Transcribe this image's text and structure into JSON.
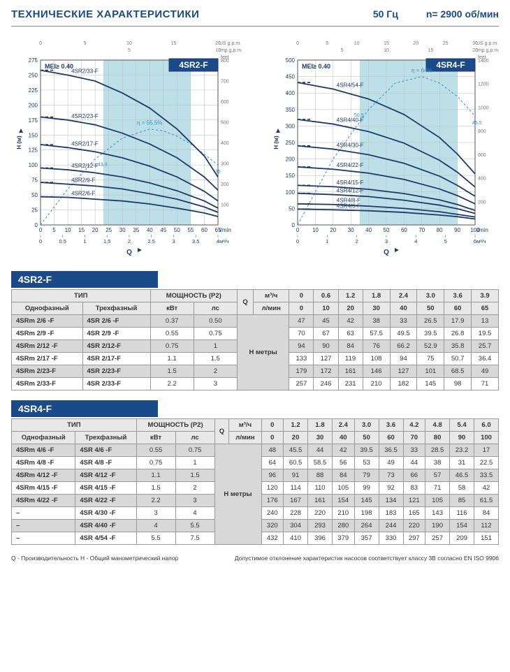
{
  "header": {
    "title": "ТЕХНИЧЕСКИЕ ХАРАКТЕРИСТИКИ",
    "freq": "50 Гц",
    "rpm": "n= 2900 об/мин"
  },
  "charts": {
    "left": {
      "badge": "4SR2-F",
      "mei": "MEI≥ 0.40",
      "eff_label": "η = 55.5%",
      "xlim": [
        0,
        65
      ],
      "ylim": [
        0,
        275
      ],
      "yticks": [
        0,
        25,
        50,
        75,
        100,
        125,
        150,
        175,
        200,
        225,
        250,
        275
      ],
      "xticks": [
        0,
        5,
        10,
        15,
        20,
        25,
        30,
        35,
        40,
        45,
        50,
        55,
        60,
        65
      ],
      "xtop_ticks": [
        0,
        5,
        10,
        15,
        20
      ],
      "xtop_label": "US g.p.m.",
      "xtop2_ticks": [
        5,
        10
      ],
      "xtop2_label": "Imp.g.p.m.",
      "xbot_ticks": [
        0,
        0.5,
        1,
        1.5,
        2,
        2.5,
        3,
        3.5,
        4
      ],
      "xbot_label": "м³/ч",
      "xunits": "l/min",
      "ylabel_left": "H   (м)",
      "yright_ticks": [
        100,
        200,
        300,
        400,
        500,
        600,
        700,
        800
      ],
      "yright_label": "feet",
      "xlabel": "Q",
      "shade_x": [
        23,
        55
      ],
      "curves": [
        {
          "label": "4SR2/33-F",
          "pts": [
            [
              0,
              258
            ],
            [
              10,
              250
            ],
            [
              20,
              240
            ],
            [
              30,
              220
            ],
            [
              40,
              195
            ],
            [
              50,
              160
            ],
            [
              60,
              115
            ],
            [
              65,
              80
            ]
          ]
        },
        {
          "label": "4SR2/23-F",
          "pts": [
            [
              0,
              180
            ],
            [
              10,
              175
            ],
            [
              20,
              167
            ],
            [
              30,
              153
            ],
            [
              40,
              135
            ],
            [
              50,
              112
            ],
            [
              60,
              80
            ],
            [
              65,
              58
            ]
          ]
        },
        {
          "label": "4SR2/17-F",
          "pts": [
            [
              0,
              134
            ],
            [
              10,
              129
            ],
            [
              20,
              122
            ],
            [
              30,
              112
            ],
            [
              40,
              98
            ],
            [
              50,
              80
            ],
            [
              60,
              56
            ],
            [
              65,
              40
            ]
          ]
        },
        {
          "label": "4SR2/12-F",
          "pts": [
            [
              0,
              95
            ],
            [
              10,
              92
            ],
            [
              20,
              87
            ],
            [
              30,
              80
            ],
            [
              40,
              70
            ],
            [
              50,
              57
            ],
            [
              60,
              40
            ],
            [
              65,
              28
            ]
          ]
        },
        {
          "label": "4SR2/9-F",
          "pts": [
            [
              0,
              71
            ],
            [
              10,
              68
            ],
            [
              20,
              65
            ],
            [
              30,
              60
            ],
            [
              40,
              52
            ],
            [
              50,
              43
            ],
            [
              60,
              30
            ],
            [
              65,
              21
            ]
          ]
        },
        {
          "label": "4SR2/6-F",
          "pts": [
            [
              0,
              47
            ],
            [
              10,
              46
            ],
            [
              20,
              43
            ],
            [
              30,
              40
            ],
            [
              40,
              35
            ],
            [
              50,
              28
            ],
            [
              60,
              20
            ],
            [
              65,
              14
            ]
          ]
        }
      ],
      "eff_curve": [
        [
          0,
          0
        ],
        [
          10,
          60
        ],
        [
          20,
          110
        ],
        [
          30,
          145
        ],
        [
          40,
          160
        ],
        [
          45,
          157
        ],
        [
          50,
          148
        ],
        [
          55,
          135
        ],
        [
          60,
          118
        ],
        [
          65,
          100
        ]
      ],
      "eff_end_labels": {
        "start": "43.4",
        "end": "35"
      },
      "colors": {
        "line": "#1b3a6a",
        "bg": "#ffffff",
        "grid": "#bbb",
        "shade": "#bde0e8",
        "badge_bg": "#1b4a8a",
        "eff": "#2d93c9"
      }
    },
    "right": {
      "badge": "4SR4-F",
      "mei": "MEI≥ 0.40",
      "eff_label": "η = 64%",
      "xlim": [
        0,
        100
      ],
      "ylim": [
        0,
        500
      ],
      "yticks": [
        0,
        50,
        100,
        150,
        200,
        250,
        300,
        350,
        400,
        450,
        500
      ],
      "xticks": [
        0,
        10,
        20,
        30,
        40,
        50,
        60,
        70,
        80,
        90,
        100
      ],
      "xtop_ticks": [
        0,
        5,
        10,
        15,
        20,
        25,
        30
      ],
      "xtop_label": "US g.p.m.",
      "xtop2_ticks": [
        5,
        10,
        15,
        20
      ],
      "xtop2_label": "Imp.g.p.m.",
      "xbot_ticks": [
        0,
        1,
        2,
        3,
        4,
        5,
        6
      ],
      "xbot_label": "м³/ч",
      "xunits": "l/min",
      "ylabel_left": "H   (м)",
      "yright_ticks": [
        200,
        400,
        600,
        800,
        1000,
        1200,
        1400
      ],
      "yright_label": "feet",
      "xlabel": "Q",
      "shade_x": [
        35,
        90
      ],
      "curves": [
        {
          "label": "4SR4/54-F",
          "pts": [
            [
              0,
              432
            ],
            [
              20,
              412
            ],
            [
              40,
              382
            ],
            [
              60,
              335
            ],
            [
              80,
              265
            ],
            [
              90,
              215
            ],
            [
              100,
              155
            ]
          ]
        },
        {
          "label": "4SR4/40-F",
          "pts": [
            [
              0,
              320
            ],
            [
              20,
              306
            ],
            [
              40,
              283
            ],
            [
              60,
              248
            ],
            [
              80,
              196
            ],
            [
              90,
              160
            ],
            [
              100,
              115
            ]
          ]
        },
        {
          "label": "4SR4/30-F",
          "pts": [
            [
              0,
              240
            ],
            [
              20,
              230
            ],
            [
              40,
              213
            ],
            [
              60,
              187
            ],
            [
              80,
              148
            ],
            [
              90,
              120
            ],
            [
              100,
              87
            ]
          ]
        },
        {
          "label": "4SR4/22-F",
          "pts": [
            [
              0,
              176
            ],
            [
              20,
              169
            ],
            [
              40,
              157
            ],
            [
              60,
              138
            ],
            [
              80,
              109
            ],
            [
              90,
              89
            ],
            [
              100,
              64
            ]
          ]
        },
        {
          "label": "4SR4/15-F",
          "pts": [
            [
              0,
              120
            ],
            [
              20,
              116
            ],
            [
              40,
              108
            ],
            [
              60,
              95
            ],
            [
              80,
              76
            ],
            [
              90,
              62
            ],
            [
              100,
              44
            ]
          ]
        },
        {
          "label": "4SR4/12-F",
          "pts": [
            [
              0,
              96
            ],
            [
              20,
              92
            ],
            [
              40,
              86
            ],
            [
              60,
              75
            ],
            [
              80,
              60
            ],
            [
              90,
              49
            ],
            [
              100,
              35
            ]
          ]
        },
        {
          "label": "4SR4/8-F",
          "pts": [
            [
              0,
              64
            ],
            [
              20,
              62
            ],
            [
              40,
              57
            ],
            [
              60,
              50
            ],
            [
              80,
              40
            ],
            [
              90,
              32
            ],
            [
              100,
              24
            ]
          ]
        },
        {
          "label": "4SR4/6-F",
          "pts": [
            [
              0,
              48
            ],
            [
              20,
              46
            ],
            [
              40,
              43
            ],
            [
              60,
              38
            ],
            [
              80,
              30
            ],
            [
              90,
              25
            ],
            [
              100,
              18
            ]
          ]
        }
      ],
      "eff_curve": [
        [
          0,
          0
        ],
        [
          20,
          200
        ],
        [
          40,
          350
        ],
        [
          55,
          430
        ],
        [
          70,
          450
        ],
        [
          80,
          430
        ],
        [
          90,
          390
        ],
        [
          100,
          330
        ]
      ],
      "eff_end_labels": {
        "start": "50.5",
        "end": "45.5"
      },
      "colors": {
        "line": "#1b3a6a",
        "bg": "#ffffff",
        "grid": "#bbb",
        "shade": "#bde0e8",
        "badge_bg": "#1b4a8a",
        "eff": "#2d93c9"
      }
    }
  },
  "tables": {
    "t1": {
      "title": "4SR2-F",
      "headers": {
        "type": "ТИП",
        "single": "Однофазный",
        "three": "Трехфазный",
        "power": "МОЩНОСТЬ (P2)",
        "kw": "кВт",
        "hp": "лс",
        "q": "Q",
        "m3h": "м³/ч",
        "lmin": "л/мин",
        "hunit": "H  метры"
      },
      "m3h_row": [
        "0",
        "0.6",
        "1.2",
        "1.8",
        "2.4",
        "3.0",
        "3.6",
        "3.9"
      ],
      "lmin_row": [
        "0",
        "10",
        "20",
        "30",
        "40",
        "50",
        "60",
        "65"
      ],
      "rows": [
        {
          "s": "4SRm 2/6  -F",
          "t": "4SR 2/6  -F",
          "kw": "0.37",
          "hp": "0.50",
          "v": [
            "47",
            "45",
            "42",
            "38",
            "33",
            "26.5",
            "17.9",
            "13"
          ]
        },
        {
          "s": "4SRm 2/9  -F",
          "t": "4SR 2/9  -F",
          "kw": "0.55",
          "hp": "0.75",
          "v": [
            "70",
            "67",
            "63",
            "57.5",
            "49.5",
            "39.5",
            "26.8",
            "19.5"
          ]
        },
        {
          "s": "4SRm 2/12 -F",
          "t": "4SR 2/12-F",
          "kw": "0.75",
          "hp": "1",
          "v": [
            "94",
            "90",
            "84",
            "76",
            "66.2",
            "52.9",
            "35.8",
            "25.7"
          ]
        },
        {
          "s": "4SRm 2/17 -F",
          "t": "4SR 2/17-F",
          "kw": "1.1",
          "hp": "1.5",
          "v": [
            "133",
            "127",
            "119",
            "108",
            "94",
            "75",
            "50.7",
            "36.4"
          ]
        },
        {
          "s": "4SRm 2/23-F",
          "t": "4SR 2/23-F",
          "kw": "1.5",
          "hp": "2",
          "v": [
            "179",
            "172",
            "161",
            "146",
            "127",
            "101",
            "68.5",
            "49"
          ]
        },
        {
          "s": "4SRm 2/33-F",
          "t": "4SR 2/33-F",
          "kw": "2.2",
          "hp": "3",
          "v": [
            "257",
            "246",
            "231",
            "210",
            "182",
            "145",
            "98",
            "71"
          ]
        }
      ]
    },
    "t2": {
      "title": "4SR4-F",
      "headers": {
        "type": "ТИП",
        "single": "Однофазный",
        "three": "Трехфазный",
        "power": "МОЩНОСТЬ (P2)",
        "kw": "кВт",
        "hp": "лс",
        "q": "Q",
        "m3h": "м³/ч",
        "lmin": "л/мин",
        "hunit": "H  метры"
      },
      "m3h_row": [
        "0",
        "1.2",
        "1.8",
        "2.4",
        "3.0",
        "3.6",
        "4.2",
        "4.8",
        "5.4",
        "6.0"
      ],
      "lmin_row": [
        "0",
        "20",
        "30",
        "40",
        "50",
        "60",
        "70",
        "80",
        "90",
        "100"
      ],
      "rows": [
        {
          "s": "4SRm 4/6  -F",
          "t": "4SR 4/6  -F",
          "kw": "0.55",
          "hp": "0.75",
          "v": [
            "48",
            "45.5",
            "44",
            "42",
            "39.5",
            "36.5",
            "33",
            "28.5",
            "23.2",
            "17"
          ]
        },
        {
          "s": "4SRm 4/8  -F",
          "t": "4SR 4/8  -F",
          "kw": "0.75",
          "hp": "1",
          "v": [
            "64",
            "60.5",
            "58.5",
            "56",
            "53",
            "49",
            "44",
            "38",
            "31",
            "22.5"
          ]
        },
        {
          "s": "4SRm 4/12 -F",
          "t": "4SR 4/12 -F",
          "kw": "1.1",
          "hp": "1.5",
          "v": [
            "96",
            "91",
            "88",
            "84",
            "79",
            "73",
            "66",
            "57",
            "46.5",
            "33.5"
          ]
        },
        {
          "s": "4SRm 4/15 -F",
          "t": "4SR 4/15 -F",
          "kw": "1.5",
          "hp": "2",
          "v": [
            "120",
            "114",
            "110",
            "105",
            "99",
            "92",
            "83",
            "71",
            "58",
            "42"
          ]
        },
        {
          "s": "4SRm 4/22 -F",
          "t": "4SR 4/22 -F",
          "kw": "2.2",
          "hp": "3",
          "v": [
            "176",
            "167",
            "161",
            "154",
            "145",
            "134",
            "121",
            "105",
            "85",
            "61.5"
          ]
        },
        {
          "s": "–",
          "t": "4SR 4/30 -F",
          "kw": "3",
          "hp": "4",
          "v": [
            "240",
            "228",
            "220",
            "210",
            "198",
            "183",
            "165",
            "143",
            "116",
            "84"
          ]
        },
        {
          "s": "–",
          "t": "4SR 4/40 -F",
          "kw": "4",
          "hp": "5.5",
          "v": [
            "320",
            "304",
            "293",
            "280",
            "264",
            "244",
            "220",
            "190",
            "154",
            "112"
          ]
        },
        {
          "s": "–",
          "t": "4SR 4/54 -F",
          "kw": "5.5",
          "hp": "7.5",
          "v": [
            "432",
            "410",
            "396",
            "379",
            "357",
            "330",
            "297",
            "257",
            "209",
            "151"
          ]
        }
      ]
    }
  },
  "footnotes": {
    "left": "Q - Производительность   H - Общий манометрический напор",
    "right": "Допустимое отклонение характеристик насосов соответствует классу 3B согласно EN ISO 9906"
  }
}
